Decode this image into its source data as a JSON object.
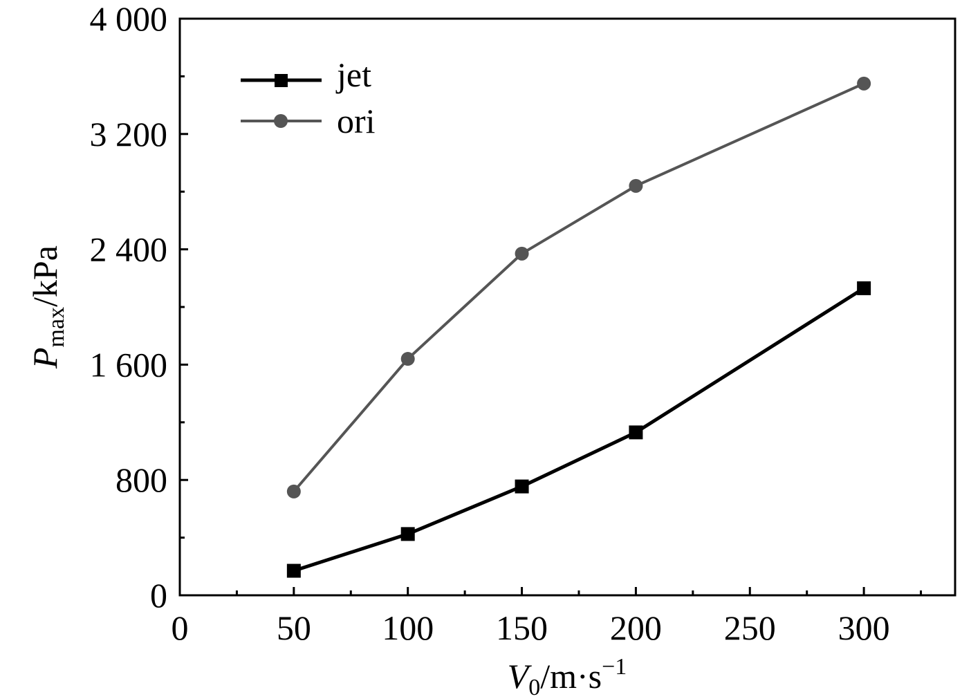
{
  "chart_data": {
    "type": "line",
    "title": "",
    "x": [
      50,
      100,
      150,
      200,
      300
    ],
    "xlim": [
      0,
      340
    ],
    "ylim": [
      0,
      4000
    ],
    "xticks": [
      0,
      50,
      100,
      150,
      200,
      250,
      300
    ],
    "yticks": [
      0,
      800,
      1600,
      2400,
      3200,
      4000
    ],
    "xtick_labels": [
      "0",
      "50",
      "100",
      "150",
      "200",
      "250",
      "300"
    ],
    "ytick_labels": [
      "0",
      "800",
      "1 600",
      "2 400",
      "3 200",
      "4 000"
    ],
    "xlabel": {
      "main": "V",
      "sub": "0",
      "rest": "/m·s",
      "sup": "−1"
    },
    "ylabel": {
      "main": "P",
      "sub": "max",
      "rest": "/kPa"
    },
    "legend_position": "top-left",
    "series": [
      {
        "name": "jet",
        "marker": "square",
        "color": "#000000",
        "values": [
          170,
          425,
          755,
          1130,
          2130
        ]
      },
      {
        "name": "ori",
        "marker": "circle",
        "color": "#555555",
        "values": [
          720,
          1640,
          2370,
          2840,
          3550
        ]
      }
    ]
  }
}
